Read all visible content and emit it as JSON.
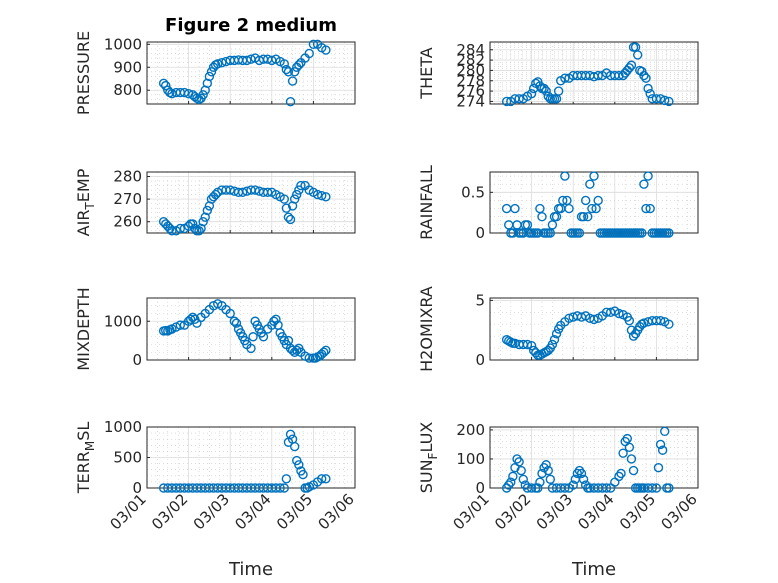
{
  "figure": {
    "title": "Figure 2 medium"
  },
  "colors": {
    "marker": "#0072BD"
  },
  "x_axis": {
    "label": "Time",
    "ticks": [
      1,
      2,
      3,
      4,
      5,
      6
    ],
    "tick_labels": [
      "03/01",
      "03/02",
      "03/03",
      "03/04",
      "03/05",
      "03/06"
    ],
    "range": [
      1,
      6
    ]
  },
  "chart_data": [
    {
      "type": "scatter",
      "ylabel": "PRESSURE",
      "title": "Figure 2 medium",
      "ylim": [
        740,
        1010
      ],
      "yticks": [
        800,
        900,
        1000
      ],
      "grid": true,
      "x": [
        1.4,
        1.45,
        1.5,
        1.55,
        1.6,
        1.7,
        1.8,
        1.9,
        2.0,
        2.1,
        2.15,
        2.2,
        2.25,
        2.3,
        2.35,
        2.4,
        2.45,
        2.5,
        2.55,
        2.6,
        2.65,
        2.7,
        2.8,
        2.9,
        3.0,
        3.1,
        3.2,
        3.3,
        3.4,
        3.5,
        3.6,
        3.7,
        3.8,
        3.9,
        4.0,
        4.1,
        4.2,
        4.3,
        4.35,
        4.4,
        4.45,
        4.5,
        4.55,
        4.6,
        4.65,
        4.7,
        4.8,
        4.9,
        5.0,
        5.1,
        5.2,
        5.3
      ],
      "y": [
        830,
        820,
        800,
        790,
        785,
        790,
        790,
        790,
        785,
        780,
        772,
        765,
        760,
        765,
        780,
        800,
        830,
        860,
        880,
        900,
        910,
        915,
        920,
        925,
        930,
        930,
        932,
        930,
        930,
        935,
        940,
        930,
        935,
        935,
        930,
        935,
        925,
        915,
        890,
        880,
        750,
        840,
        880,
        900,
        910,
        920,
        940,
        960,
        1000,
        1000,
        985,
        975
      ]
    },
    {
      "type": "scatter",
      "ylabel": "THETA",
      "ylim": [
        273.5,
        285.5
      ],
      "yticks": [
        274,
        276,
        278,
        280,
        282,
        284
      ],
      "grid": true,
      "x": [
        1.4,
        1.5,
        1.6,
        1.7,
        1.8,
        1.9,
        2.0,
        2.05,
        2.1,
        2.15,
        2.2,
        2.25,
        2.3,
        2.35,
        2.4,
        2.45,
        2.5,
        2.55,
        2.6,
        2.65,
        2.7,
        2.8,
        2.9,
        3.0,
        3.1,
        3.2,
        3.3,
        3.4,
        3.5,
        3.6,
        3.7,
        3.8,
        3.9,
        4.0,
        4.1,
        4.2,
        4.25,
        4.3,
        4.35,
        4.4,
        4.45,
        4.5,
        4.55,
        4.6,
        4.65,
        4.7,
        4.75,
        4.8,
        4.85,
        4.9,
        5.0,
        5.1,
        5.2,
        5.3
      ],
      "y": [
        274,
        274,
        274.5,
        274.5,
        274.5,
        275,
        275.5,
        276.5,
        277.5,
        277.8,
        277,
        276.5,
        276.5,
        276,
        275,
        274.5,
        274.5,
        274.5,
        274.5,
        276,
        278,
        278.5,
        278.5,
        279,
        279,
        279,
        279,
        279,
        278.8,
        279,
        279,
        279.5,
        279,
        279,
        279,
        279,
        279.5,
        280,
        280.5,
        281,
        284.5,
        284.5,
        283,
        280,
        279.8,
        279,
        278.5,
        276.5,
        275.5,
        274.5,
        274.5,
        274.5,
        274.2,
        274
      ]
    },
    {
      "type": "scatter",
      "ylabel": "AIR_TEMP",
      "ylim": [
        255,
        282
      ],
      "yticks": [
        260,
        270,
        280
      ],
      "grid": true,
      "x": [
        1.4,
        1.45,
        1.5,
        1.55,
        1.6,
        1.7,
        1.8,
        1.9,
        2.0,
        2.05,
        2.1,
        2.15,
        2.2,
        2.25,
        2.3,
        2.35,
        2.4,
        2.45,
        2.5,
        2.55,
        2.6,
        2.65,
        2.7,
        2.8,
        2.9,
        3.0,
        3.1,
        3.2,
        3.3,
        3.4,
        3.5,
        3.6,
        3.7,
        3.8,
        3.9,
        4.0,
        4.1,
        4.2,
        4.3,
        4.35,
        4.4,
        4.45,
        4.5,
        4.55,
        4.6,
        4.65,
        4.7,
        4.8,
        4.9,
        5.0,
        5.1,
        5.2,
        5.3
      ],
      "y": [
        260,
        259,
        258,
        257,
        256,
        256,
        257,
        257,
        258,
        259,
        259,
        257,
        256,
        256,
        257,
        260,
        262,
        265,
        267,
        270,
        271,
        272,
        273,
        274,
        274,
        274,
        273.5,
        273,
        273,
        273.5,
        274,
        274,
        273.5,
        273,
        273,
        273,
        272,
        271,
        270,
        266,
        262,
        261,
        267,
        270,
        272,
        274,
        276,
        276,
        274,
        273,
        272,
        271.5,
        271
      ]
    },
    {
      "type": "scatter",
      "ylabel": "RAINFALL",
      "ylim": [
        0,
        0.75
      ],
      "yticks": [
        0,
        0.5
      ],
      "grid": true,
      "x": [
        1.4,
        1.45,
        1.5,
        1.55,
        1.6,
        1.65,
        1.7,
        1.75,
        1.8,
        1.85,
        1.9,
        1.95,
        2.0,
        2.05,
        2.1,
        2.15,
        2.2,
        2.25,
        2.3,
        2.35,
        2.4,
        2.45,
        2.5,
        2.55,
        2.6,
        2.65,
        2.7,
        2.75,
        2.8,
        2.85,
        2.9,
        2.95,
        3.0,
        3.05,
        3.1,
        3.15,
        3.2,
        3.25,
        3.3,
        3.35,
        3.4,
        3.45,
        3.5,
        3.55,
        3.6,
        3.65,
        3.7,
        3.75,
        3.8,
        3.85,
        3.9,
        3.95,
        4.0,
        4.05,
        4.1,
        4.15,
        4.2,
        4.25,
        4.3,
        4.35,
        4.4,
        4.45,
        4.5,
        4.55,
        4.6,
        4.65,
        4.7,
        4.75,
        4.8,
        4.85,
        4.9,
        4.95,
        5.0,
        5.05,
        5.1,
        5.15,
        5.2,
        5.25,
        5.3
      ],
      "y": [
        0.3,
        0.1,
        0,
        0,
        0.3,
        0.1,
        0,
        0,
        0,
        0.1,
        0.1,
        0,
        0,
        0,
        0,
        0,
        0.3,
        0.2,
        0,
        0,
        0,
        0,
        0.1,
        0.2,
        0.2,
        0.3,
        0.3,
        0.4,
        0.7,
        0.4,
        0.3,
        0,
        0,
        0,
        0,
        0,
        0.2,
        0.2,
        0.4,
        0.2,
        0.6,
        0.3,
        0.7,
        0.3,
        0.4,
        0,
        0,
        0,
        0,
        0,
        0,
        0,
        0,
        0,
        0,
        0,
        0,
        0,
        0,
        0,
        0,
        0,
        0,
        0,
        0,
        0,
        0.6,
        0.3,
        0.7,
        0.3,
        0,
        0,
        0,
        0,
        0,
        0,
        0,
        0,
        0
      ]
    },
    {
      "type": "scatter",
      "ylabel": "MIXDEPTH",
      "ylim": [
        0,
        1600
      ],
      "yticks": [
        0,
        1000
      ],
      "grid": true,
      "x": [
        1.4,
        1.45,
        1.5,
        1.55,
        1.6,
        1.7,
        1.8,
        1.9,
        2.0,
        2.05,
        2.1,
        2.15,
        2.2,
        2.3,
        2.4,
        2.5,
        2.6,
        2.7,
        2.8,
        2.9,
        3.0,
        3.1,
        3.15,
        3.2,
        3.25,
        3.3,
        3.35,
        3.4,
        3.5,
        3.55,
        3.6,
        3.65,
        3.7,
        3.75,
        3.8,
        3.9,
        4.0,
        4.05,
        4.1,
        4.15,
        4.2,
        4.25,
        4.3,
        4.35,
        4.4,
        4.45,
        4.5,
        4.55,
        4.6,
        4.65,
        4.7,
        4.8,
        4.9,
        5.0,
        5.05,
        5.1,
        5.15,
        5.2,
        5.25,
        5.3
      ],
      "y": [
        750,
        760,
        750,
        780,
        800,
        850,
        900,
        900,
        1000,
        1050,
        1100,
        1050,
        950,
        1100,
        1200,
        1300,
        1400,
        1450,
        1400,
        1300,
        1200,
        1000,
        950,
        800,
        700,
        600,
        500,
        400,
        300,
        600,
        1000,
        900,
        800,
        700,
        600,
        800,
        900,
        1000,
        1050,
        900,
        700,
        600,
        500,
        400,
        500,
        300,
        250,
        200,
        250,
        300,
        200,
        100,
        50,
        50,
        50,
        80,
        100,
        150,
        200,
        250
      ]
    },
    {
      "type": "scatter",
      "ylabel": "H2OMIXRA",
      "ylim": [
        0,
        5.2
      ],
      "yticks": [
        0,
        5
      ],
      "grid": true,
      "x": [
        1.4,
        1.45,
        1.5,
        1.55,
        1.6,
        1.7,
        1.8,
        1.9,
        2.0,
        2.05,
        2.1,
        2.15,
        2.2,
        2.25,
        2.3,
        2.35,
        2.4,
        2.45,
        2.5,
        2.55,
        2.6,
        2.65,
        2.7,
        2.8,
        2.9,
        3.0,
        3.1,
        3.2,
        3.3,
        3.4,
        3.5,
        3.6,
        3.7,
        3.8,
        3.9,
        4.0,
        4.1,
        4.2,
        4.3,
        4.35,
        4.4,
        4.45,
        4.5,
        4.55,
        4.6,
        4.65,
        4.7,
        4.8,
        4.9,
        5.0,
        5.1,
        5.2,
        5.3
      ],
      "y": [
        1.7,
        1.6,
        1.5,
        1.4,
        1.4,
        1.3,
        1.3,
        1.3,
        1.2,
        0.8,
        0.6,
        0.4,
        0.4,
        0.5,
        0.6,
        0.7,
        0.8,
        1,
        1.3,
        1.7,
        2.2,
        2.6,
        2.9,
        3.2,
        3.5,
        3.6,
        3.7,
        3.6,
        3.7,
        3.5,
        3.4,
        3.5,
        3.7,
        4,
        4,
        4.1,
        3.9,
        3.8,
        3.6,
        3.3,
        2.5,
        2,
        2.2,
        2.5,
        2.8,
        3,
        3.1,
        3.2,
        3.3,
        3.3,
        3.3,
        3.2,
        3
      ]
    },
    {
      "type": "scatter",
      "ylabel": "TERR_MSL",
      "ylim": [
        0,
        1000
      ],
      "yticks": [
        0,
        500,
        1000
      ],
      "grid": true,
      "x": [
        1.4,
        1.5,
        1.6,
        1.7,
        1.8,
        1.9,
        2.0,
        2.1,
        2.2,
        2.3,
        2.4,
        2.5,
        2.6,
        2.7,
        2.8,
        2.9,
        3.0,
        3.1,
        3.2,
        3.3,
        3.4,
        3.5,
        3.6,
        3.7,
        3.8,
        3.9,
        4.0,
        4.1,
        4.2,
        4.3,
        4.35,
        4.4,
        4.45,
        4.5,
        4.55,
        4.6,
        4.65,
        4.7,
        4.75,
        4.8,
        4.85,
        4.9,
        5.0,
        5.1,
        5.2,
        5.3
      ],
      "y": [
        0,
        0,
        0,
        0,
        0,
        0,
        0,
        0,
        0,
        0,
        0,
        0,
        0,
        0,
        0,
        0,
        0,
        0,
        0,
        0,
        0,
        0,
        0,
        0,
        0,
        0,
        0,
        0,
        0,
        0,
        150,
        750,
        880,
        800,
        680,
        450,
        380,
        280,
        220,
        0,
        0,
        20,
        50,
        100,
        150,
        150
      ]
    },
    {
      "type": "scatter",
      "ylabel": "SUN_FLUX",
      "ylim": [
        0,
        210
      ],
      "yticks": [
        0,
        100,
        200
      ],
      "grid": true,
      "x": [
        1.4,
        1.45,
        1.5,
        1.55,
        1.6,
        1.65,
        1.7,
        1.75,
        1.8,
        1.85,
        1.9,
        2.0,
        2.1,
        2.15,
        2.2,
        2.25,
        2.3,
        2.35,
        2.4,
        2.45,
        2.5,
        2.6,
        2.7,
        2.8,
        2.9,
        3.0,
        3.05,
        3.1,
        3.15,
        3.2,
        3.25,
        3.3,
        3.35,
        3.4,
        3.5,
        3.6,
        3.7,
        3.8,
        3.9,
        4.0,
        4.1,
        4.15,
        4.2,
        4.25,
        4.3,
        4.35,
        4.4,
        4.45,
        4.5,
        4.55,
        4.6,
        4.65,
        4.7,
        4.8,
        4.9,
        5.0,
        5.05,
        5.1,
        5.15,
        5.2,
        5.25,
        5.3
      ],
      "y": [
        0,
        10,
        20,
        40,
        70,
        100,
        90,
        60,
        30,
        10,
        0,
        0,
        0,
        0,
        20,
        50,
        70,
        80,
        60,
        30,
        0,
        0,
        0,
        0,
        0,
        10,
        30,
        50,
        60,
        50,
        30,
        10,
        0,
        0,
        0,
        0,
        0,
        0,
        0,
        20,
        40,
        50,
        120,
        160,
        170,
        140,
        100,
        60,
        0,
        0,
        0,
        0,
        0,
        0,
        0,
        0,
        70,
        150,
        130,
        195,
        0,
        0
      ]
    }
  ]
}
